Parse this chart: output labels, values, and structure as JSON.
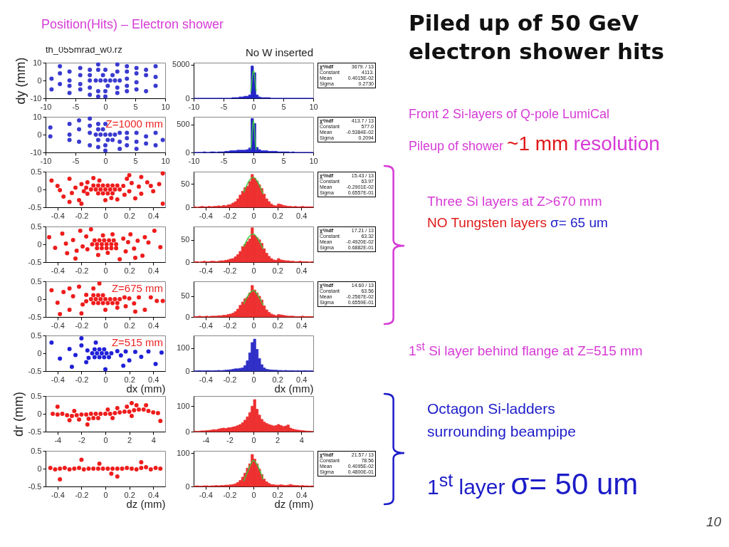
{
  "chart_data": [
    {
      "type": "scatter",
      "title": "th_055mrad_w0.rz",
      "ylabel": "dy (mm)",
      "color": "#3a3ad0",
      "x": [
        -1.6,
        -0.8,
        0,
        0.8,
        1.6,
        2.4,
        -0.4,
        0.4,
        1.2,
        -1.2,
        -1.2,
        -1.2,
        -1.2,
        0,
        0,
        0,
        2,
        2,
        2,
        2,
        3.6,
        3.6,
        3.6,
        3.6,
        3.6,
        5.2,
        5.2,
        5.2,
        5.2,
        6.8,
        6.8,
        6.8,
        8.4,
        8.4,
        8.4,
        -2.6,
        -2.6,
        -2.6,
        -2.6,
        -2.6,
        -4.2,
        -4.2,
        -4.2,
        -4.2,
        -6,
        -6,
        -6,
        -6,
        -7.6,
        -7.6,
        -7.6,
        -9,
        -9
      ],
      "values": [
        0,
        0,
        0,
        0,
        0,
        0,
        3,
        -3,
        3,
        6,
        -6,
        9,
        -9,
        6,
        -6,
        -9,
        5,
        -4,
        -7,
        9,
        5,
        -3,
        8,
        -6,
        1,
        4,
        -5,
        7,
        -1,
        3,
        -6,
        6,
        2,
        -3,
        8,
        6,
        -4,
        0,
        -8,
        3,
        3,
        -5,
        7,
        -2,
        0,
        -3,
        5,
        -7,
        4,
        -2,
        8,
        1,
        -5
      ],
      "xlim": [
        -10,
        10
      ],
      "ylim": [
        -10,
        10
      ],
      "xticks": [
        -10,
        -5,
        0,
        5,
        10
      ],
      "yticks": [
        -10,
        0,
        10
      ]
    },
    {
      "type": "histogram",
      "title": "No W inserted",
      "bins": [
        -10,
        -9.6,
        -9.2,
        -8.8,
        -8.4,
        -8,
        -7.6,
        -7.2,
        -6.8,
        -6.4,
        -6,
        -5.6,
        -5.2,
        -4.8,
        -4.4,
        -4,
        -3.6,
        -3.2,
        -2.8,
        -2.4,
        -2,
        -1.6,
        -1.2,
        -0.8,
        -0.4,
        0,
        0.4,
        0.8,
        1.2,
        1.6,
        2,
        2.4,
        2.8,
        3.2,
        3.6,
        4,
        4.4,
        4.8,
        5.2,
        5.6,
        6,
        6.4,
        6.8,
        7.2,
        7.6,
        8,
        8.4,
        8.8,
        9.2,
        9.6,
        10
      ],
      "series": [
        {
          "color": "#2424c8",
          "values": [
            0,
            0,
            0,
            0,
            0,
            0,
            0,
            0,
            0,
            0,
            0,
            0,
            0,
            0,
            0,
            0,
            100,
            100,
            100,
            200,
            200,
            300,
            300,
            500,
            4800,
            3800,
            500,
            200,
            100,
            100,
            100,
            100,
            0,
            0,
            0,
            0,
            0,
            0,
            0,
            0,
            0,
            0,
            0,
            0,
            0,
            0,
            0,
            0,
            0,
            0
          ]
        },
        {
          "type": "line",
          "color": "#3cc83c",
          "x": [
            -0.45,
            -0.3,
            -0.15,
            0,
            0.15,
            0.3,
            0.45
          ],
          "values": [
            1000,
            2200,
            3500,
            4100,
            3600,
            2300,
            1100
          ]
        }
      ],
      "xlim": [
        -10,
        10
      ],
      "ylim": [
        0,
        5300
      ],
      "xticks": [
        -10,
        -5,
        0,
        5,
        10
      ],
      "yticks": [
        0,
        5000
      ],
      "annotations": [
        "χ²/ndf",
        "3679. / 13",
        "Constant",
        "4113.",
        "Mean",
        "0.4015E-02",
        "Sigma",
        "0.2730"
      ]
    },
    {
      "type": "scatter",
      "color": "#3a3ad0",
      "x": [
        -1.6,
        -0.8,
        0,
        0.8,
        1.6,
        -0.4,
        0.4,
        1.2,
        -9.2,
        -9.2,
        -6,
        -6,
        -6,
        -4.4,
        -4.4,
        -4.4,
        -2.6,
        -2.6,
        -2.6,
        -2.6,
        -1.2,
        -1.2,
        -1.2,
        -1.2,
        0,
        0,
        0,
        2.4,
        2.4,
        2.4,
        3.6,
        3.6,
        3.6,
        5.2,
        5.2,
        5.2,
        6.8,
        6.8,
        8.4,
        8.4,
        9.6
      ],
      "values": [
        0,
        0,
        0,
        0,
        0,
        3,
        -3,
        -3,
        -1,
        4,
        0,
        -3,
        6,
        3,
        -4,
        8,
        5,
        -6,
        1,
        9,
        3,
        -3,
        6,
        -7,
        -6,
        -9,
        6,
        -4,
        1,
        -8,
        -2,
        1,
        -6,
        -4,
        1,
        -8,
        -1,
        -5,
        1,
        -6,
        -3
      ],
      "xlim": [
        -10,
        10
      ],
      "ylim": [
        -10,
        10
      ],
      "xticks": [
        -10,
        -5,
        0,
        5,
        10
      ],
      "yticks": [
        -10,
        0,
        10
      ],
      "annotations": [
        "Z=1000 mm"
      ]
    },
    {
      "type": "histogram",
      "bins": [
        -10,
        -9.6,
        -9.2,
        -8.8,
        -8.4,
        -8,
        -7.6,
        -7.2,
        -6.8,
        -6.4,
        -6,
        -5.6,
        -5.2,
        -4.8,
        -4.4,
        -4,
        -3.6,
        -3.2,
        -2.8,
        -2.4,
        -2,
        -1.6,
        -1.2,
        -0.8,
        -0.4,
        0,
        0.4,
        0.8,
        1.2,
        1.6,
        2,
        2.4,
        2.8,
        3.2,
        3.6,
        4,
        4.4,
        4.8,
        5.2,
        5.6,
        6,
        6.4,
        6.8,
        7.2,
        7.6,
        8,
        8.4,
        8.8,
        9.2,
        9.6,
        10
      ],
      "series": [
        {
          "color": "#2424c8",
          "values": [
            0,
            0,
            0,
            0,
            10,
            0,
            0,
            10,
            10,
            0,
            10,
            10,
            10,
            20,
            20,
            30,
            30,
            30,
            40,
            40,
            40,
            40,
            50,
            80,
            610,
            520,
            90,
            50,
            30,
            30,
            30,
            20,
            20,
            20,
            20,
            10,
            10,
            10,
            10,
            10,
            0,
            10,
            0,
            0,
            0,
            0,
            0,
            0,
            0,
            0
          ]
        },
        {
          "type": "line",
          "color": "#3cc83c",
          "x": [
            -0.45,
            -0.3,
            -0.15,
            0,
            0.15,
            0.3,
            0.45
          ],
          "values": [
            60,
            210,
            450,
            580,
            440,
            200,
            50
          ]
        }
      ],
      "xlim": [
        -10,
        10
      ],
      "ylim": [
        0,
        640
      ],
      "xticks": [
        -10,
        -5,
        0,
        5,
        10
      ],
      "yticks": [
        0,
        500
      ],
      "annotations": [
        "χ²/ndf",
        "413.7 / 13",
        "Constant",
        "577.0",
        "Mean",
        "-0.5384E-02",
        "Sigma",
        "0.2094"
      ]
    },
    {
      "type": "scatter",
      "color": "#ee1c1c",
      "x": [
        -0.12,
        -0.08,
        -0.04,
        0,
        0.04,
        0.08,
        0.12,
        -0.1,
        -0.06,
        -0.02,
        0.02,
        0.06,
        0.1,
        -0.06,
        -0.02,
        0.02,
        0.06,
        -0.45,
        -0.4,
        -0.35,
        -0.3,
        -0.28,
        -0.25,
        -0.22,
        -0.2,
        -0.18,
        -0.15,
        -0.15,
        -0.16,
        0.15,
        0.16,
        0.18,
        0.2,
        0.22,
        0.25,
        0.28,
        0.3,
        0.35,
        0.4,
        0.45,
        0.48,
        -0.05,
        0.05,
        0,
        -0.3,
        0.3,
        -0.2,
        0.2,
        -0.1,
        0.1,
        -0.38,
        0.38,
        0.48
      ],
      "values": [
        0,
        0,
        0,
        0,
        0,
        0,
        0,
        0.11,
        0.11,
        0.11,
        0.11,
        0.11,
        0.11,
        -0.11,
        -0.11,
        -0.11,
        -0.11,
        0.25,
        0.1,
        -0.2,
        0.3,
        -0.1,
        0.05,
        -0.3,
        0.15,
        -0.05,
        0.2,
        -0.12,
        0.05,
        0.1,
        -0.15,
        0.3,
        -0.05,
        0.18,
        -0.25,
        0.08,
        -0.12,
        0.2,
        -0.05,
        0.15,
        -0.4,
        0.25,
        -0.24,
        -0.3,
        -0.35,
        0.35,
        -0.4,
        0.4,
        0.32,
        -0.28,
        -0.02,
        0.1,
        0.45
      ],
      "xlim": [
        -0.5,
        0.5
      ],
      "ylim": [
        -0.5,
        0.5
      ],
      "xticks": [
        -0.4,
        -0.2,
        0,
        0.2,
        0.4
      ],
      "yticks": [
        -0.5,
        0,
        0.5
      ]
    },
    {
      "type": "histogram",
      "bins": [
        -0.5,
        -0.48,
        -0.46,
        -0.44,
        -0.42,
        -0.4,
        -0.38,
        -0.36,
        -0.34,
        -0.32,
        -0.3,
        -0.28,
        -0.26,
        -0.24,
        -0.22,
        -0.2,
        -0.18,
        -0.16,
        -0.14,
        -0.12,
        -0.1,
        -0.08,
        -0.06,
        -0.04,
        -0.02,
        0,
        0.02,
        0.04,
        0.06,
        0.08,
        0.1,
        0.12,
        0.14,
        0.16,
        0.18,
        0.2,
        0.22,
        0.24,
        0.26,
        0.28,
        0.3,
        0.32,
        0.34,
        0.36,
        0.38,
        0.4,
        0.42,
        0.44,
        0.46,
        0.48,
        0.5
      ],
      "series": [
        {
          "color": "#ee3030",
          "values": [
            1,
            0,
            1,
            2,
            1,
            1,
            2,
            1,
            2,
            2,
            3,
            2,
            4,
            3,
            5,
            6,
            9,
            12,
            18,
            26,
            34,
            42,
            45,
            55,
            70,
            62,
            56,
            48,
            40,
            28,
            18,
            12,
            7,
            4,
            3,
            7,
            6,
            4,
            3,
            2,
            2,
            1,
            2,
            1,
            1,
            2,
            1,
            1,
            1,
            1
          ]
        },
        {
          "type": "line",
          "color": "#3cc83c",
          "x": [
            -0.08,
            -0.04,
            0,
            0.04,
            0.08
          ],
          "values": [
            32,
            55,
            64,
            52,
            29
          ]
        }
      ],
      "xlim": [
        -0.5,
        0.5
      ],
      "ylim": [
        0,
        76
      ],
      "xticks": [
        -0.4,
        -0.2,
        0,
        0.2,
        0.4
      ],
      "yticks": [
        0,
        50
      ],
      "annotations": [
        "χ²/ndf",
        "15.43 / 13",
        "Constant",
        "63.97",
        "Mean",
        "-0.2901E-02",
        "Sigma",
        "0.6557E-01"
      ]
    },
    {
      "type": "scatter",
      "color": "#ee1c1c",
      "x": [
        -0.11,
        -0.07,
        -0.03,
        0.01,
        0.05,
        0.09,
        -0.09,
        -0.05,
        -0.01,
        0.03,
        0.07,
        -0.07,
        -0.03,
        0.01,
        0.05,
        0.09,
        -0.47,
        -0.42,
        -0.36,
        -0.32,
        -0.27,
        -0.24,
        -0.21,
        -0.19,
        -0.16,
        -0.15,
        0.15,
        0.17,
        0.19,
        0.21,
        0.24,
        0.27,
        0.31,
        0.36,
        0.41,
        0.46,
        -0.06,
        0.06,
        -0.25,
        0.25,
        -0.33,
        0.33,
        -0.12,
        0.12,
        0.02,
        -0.02
      ],
      "values": [
        0,
        0,
        0,
        0,
        0,
        0,
        0.11,
        0.11,
        0.11,
        0.11,
        0.11,
        -0.11,
        -0.11,
        -0.11,
        -0.11,
        -0.11,
        0.2,
        -0.1,
        0.3,
        -0.25,
        0.12,
        -0.18,
        0.38,
        -0.06,
        0.22,
        -0.14,
        0.16,
        -0.2,
        0.06,
        0.28,
        -0.12,
        0.1,
        -0.32,
        0.05,
        0.38,
        -0.08,
        -0.3,
        0.28,
        -0.4,
        -0.38,
        0.02,
        0.2,
        0.42,
        -0.42,
        -0.24,
        0.25
      ],
      "xlim": [
        -0.5,
        0.5
      ],
      "ylim": [
        -0.5,
        0.5
      ],
      "xticks": [
        -0.4,
        -0.2,
        0,
        0.2,
        0.4
      ],
      "yticks": [
        -0.5,
        0,
        0.5
      ]
    },
    {
      "type": "histogram",
      "bins": [
        -0.5,
        -0.48,
        -0.46,
        -0.44,
        -0.42,
        -0.4,
        -0.38,
        -0.36,
        -0.34,
        -0.32,
        -0.3,
        -0.28,
        -0.26,
        -0.24,
        -0.22,
        -0.2,
        -0.18,
        -0.16,
        -0.14,
        -0.12,
        -0.1,
        -0.08,
        -0.06,
        -0.04,
        -0.02,
        0,
        0.02,
        0.04,
        0.06,
        0.08,
        0.1,
        0.12,
        0.14,
        0.16,
        0.18,
        0.2,
        0.22,
        0.24,
        0.26,
        0.28,
        0.3,
        0.32,
        0.34,
        0.36,
        0.38,
        0.4,
        0.42,
        0.44,
        0.46,
        0.48,
        0.5
      ],
      "series": [
        {
          "color": "#ee3030",
          "values": [
            1,
            1,
            0,
            1,
            2,
            1,
            1,
            2,
            2,
            1,
            2,
            3,
            3,
            4,
            5,
            7,
            8,
            12,
            17,
            24,
            35,
            40,
            46,
            52,
            77,
            60,
            55,
            50,
            42,
            30,
            20,
            13,
            8,
            5,
            4,
            8,
            5,
            4,
            3,
            3,
            2,
            2,
            1,
            1,
            2,
            1,
            1,
            1,
            0,
            1
          ]
        },
        {
          "type": "line",
          "color": "#3cc83c",
          "x": [
            -0.08,
            -0.04,
            0,
            0.04,
            0.08
          ],
          "values": [
            35,
            56,
            63,
            51,
            30
          ]
        }
      ],
      "xlim": [
        -0.5,
        0.5
      ],
      "ylim": [
        0,
        80
      ],
      "xticks": [
        -0.4,
        -0.2,
        0,
        0.2,
        0.4
      ],
      "yticks": [
        0,
        50
      ],
      "annotations": [
        "χ²/ndf",
        "17.21 / 13",
        "Constant",
        "63.32",
        "Mean",
        "-0.4920E-02",
        "Sigma",
        "0.6882E-01"
      ]
    },
    {
      "type": "scatter",
      "color": "#ee1c1c",
      "x": [
        -0.12,
        -0.08,
        -0.04,
        0,
        0.04,
        0.08,
        0.12,
        -0.1,
        -0.06,
        -0.02,
        -0.1,
        -0.06,
        -0.02,
        0.02,
        0.06,
        0.1,
        -0.45,
        -0.4,
        -0.35,
        -0.3,
        -0.27,
        -0.22,
        -0.19,
        -0.16,
        -0.16,
        -0.2,
        -0.3,
        -0.1,
        0.16,
        0.17,
        0.2,
        0.24,
        0.28,
        0.33,
        0.38,
        0.43,
        0.48,
        0,
        -0.05,
        0.25,
        0.1,
        -0.38
      ],
      "values": [
        0,
        0,
        0,
        0,
        0,
        0,
        0,
        0.11,
        0.11,
        0.11,
        -0.11,
        -0.11,
        -0.11,
        -0.11,
        -0.11,
        -0.11,
        0.25,
        -0.1,
        0.2,
        -0.3,
        0.08,
        0.35,
        -0.15,
        0.12,
        -0.06,
        -0.4,
        0.3,
        0.3,
        0.05,
        -0.2,
        0.02,
        -0.12,
        0.05,
        -0.3,
        0.05,
        -0.05,
        -0.05,
        -0.3,
        0.44,
        -0.35,
        -0.24,
        -0.42
      ],
      "xlim": [
        -0.5,
        0.5
      ],
      "ylim": [
        -0.5,
        0.5
      ],
      "xticks": [
        -0.4,
        -0.2,
        0,
        0.2,
        0.4
      ],
      "yticks": [
        -0.5,
        0,
        0.5
      ],
      "annotations": [
        "Z=675 mm"
      ]
    },
    {
      "type": "histogram",
      "bins": [
        -0.5,
        -0.48,
        -0.46,
        -0.44,
        -0.42,
        -0.4,
        -0.38,
        -0.36,
        -0.34,
        -0.32,
        -0.3,
        -0.28,
        -0.26,
        -0.24,
        -0.22,
        -0.2,
        -0.18,
        -0.16,
        -0.14,
        -0.12,
        -0.1,
        -0.08,
        -0.06,
        -0.04,
        -0.02,
        0,
        0.02,
        0.04,
        0.06,
        0.08,
        0.1,
        0.12,
        0.14,
        0.16,
        0.18,
        0.2,
        0.22,
        0.24,
        0.26,
        0.28,
        0.3,
        0.32,
        0.34,
        0.36,
        0.38,
        0.4,
        0.42,
        0.44,
        0.46,
        0.48,
        0.5
      ],
      "series": [
        {
          "color": "#ee3030",
          "values": [
            1,
            1,
            2,
            1,
            1,
            2,
            1,
            2,
            2,
            2,
            3,
            3,
            4,
            4,
            6,
            7,
            9,
            13,
            19,
            28,
            36,
            44,
            48,
            58,
            76,
            65,
            58,
            50,
            41,
            27,
            17,
            11,
            7,
            5,
            3,
            6,
            5,
            4,
            3,
            2,
            2,
            2,
            1,
            1,
            1,
            2,
            1,
            1,
            1,
            1
          ]
        },
        {
          "type": "line",
          "color": "#3cc83c",
          "x": [
            -0.08,
            -0.04,
            0,
            0.04,
            0.08
          ],
          "values": [
            32,
            54,
            64,
            51,
            29
          ]
        }
      ],
      "xlim": [
        -0.5,
        0.5
      ],
      "ylim": [
        0,
        86
      ],
      "xticks": [
        -0.4,
        -0.2,
        0,
        0.2,
        0.4
      ],
      "yticks": [
        0,
        50
      ],
      "annotations": [
        "χ²/ndf",
        "14.60 / 13",
        "Constant",
        "63.56",
        "Mean",
        "-0.2567E-02",
        "Sigma",
        "0.6559E-01"
      ]
    },
    {
      "type": "scatter",
      "xlabel": "dx (mm)",
      "color": "#2020d8",
      "x": [
        -0.11,
        -0.07,
        -0.03,
        0.01,
        0.05,
        -0.09,
        -0.05,
        -0.01,
        -0.09,
        -0.05,
        -0.01,
        0.03,
        -0.45,
        -0.38,
        -0.3,
        -0.25,
        -0.2,
        -0.16,
        -0.15,
        -0.14,
        -0.08,
        0.1,
        0.13,
        0.17,
        0.2,
        0.25,
        0.3,
        0.36,
        0.42,
        0.47,
        -0.28,
        0.15,
        0,
        -0.2
      ],
      "values": [
        0,
        0,
        0,
        0,
        0,
        0.11,
        0.11,
        0.11,
        -0.11,
        -0.11,
        -0.11,
        -0.11,
        0.3,
        -0.15,
        0.12,
        -0.05,
        0.22,
        -0.25,
        0.08,
        -0.13,
        0.3,
        0.06,
        -0.06,
        0.05,
        -0.2,
        0.04,
        -0.1,
        0.05,
        -0.3,
        0.02,
        -0.38,
        -0.35,
        -0.45,
        0.42
      ],
      "xlim": [
        -0.5,
        0.5
      ],
      "ylim": [
        -0.5,
        0.5
      ],
      "xticks": [
        -0.4,
        -0.2,
        0,
        0.2,
        0.4
      ],
      "yticks": [
        -0.5,
        0,
        0.5
      ],
      "annotations": [
        "Z=515 mm"
      ]
    },
    {
      "type": "histogram",
      "xlabel": "dx (mm)",
      "bins": [
        -0.5,
        -0.48,
        -0.46,
        -0.44,
        -0.42,
        -0.4,
        -0.38,
        -0.36,
        -0.34,
        -0.32,
        -0.3,
        -0.28,
        -0.26,
        -0.24,
        -0.22,
        -0.2,
        -0.18,
        -0.16,
        -0.14,
        -0.12,
        -0.1,
        -0.08,
        -0.06,
        -0.04,
        -0.02,
        0,
        0.02,
        0.04,
        0.06,
        0.08,
        0.1,
        0.12,
        0.14,
        0.16,
        0.18,
        0.2,
        0.22,
        0.24,
        0.26,
        0.28,
        0.3,
        0.32,
        0.34,
        0.36,
        0.38,
        0.4,
        0.42,
        0.44,
        0.46,
        0.48,
        0.5
      ],
      "color": "#3030c8",
      "values": [
        1,
        1,
        2,
        1,
        1,
        2,
        2,
        1,
        2,
        2,
        3,
        2,
        3,
        4,
        5,
        6,
        8,
        10,
        10,
        12,
        14,
        24,
        45,
        80,
        125,
        140,
        95,
        55,
        28,
        14,
        8,
        6,
        5,
        4,
        4,
        3,
        3,
        2,
        3,
        2,
        2,
        2,
        1,
        2,
        1,
        1,
        2,
        1,
        1,
        1
      ],
      "xlim": [
        -0.5,
        0.5
      ],
      "ylim": [
        0,
        156
      ],
      "xticks": [
        -0.4,
        -0.2,
        0,
        0.2,
        0.4
      ],
      "yticks": [
        0,
        100
      ]
    },
    {
      "type": "scatter",
      "ylabel": "dr (mm)",
      "color": "#ee1c1c",
      "x": [
        -4.4,
        -4,
        -3.6,
        -3.2,
        -2.8,
        -2.4,
        -2,
        -1.6,
        -1.2,
        -0.8,
        -0.4,
        0,
        0.4,
        0.8,
        1.2,
        1.6,
        2,
        2.4,
        2.8,
        3.2,
        3.6,
        4,
        4.4,
        -3,
        -2.2,
        -1.4,
        -0.6,
        0.2,
        1,
        1.8,
        2.6,
        3.4,
        -2.6,
        -1,
        0.6,
        2.2,
        -4,
        4.6,
        -1.5,
        2.2
      ],
      "values": [
        0,
        -0.02,
        0,
        -0.04,
        -0.06,
        -0.04,
        -0.02,
        -0.02,
        0,
        0,
        0,
        0,
        0,
        0.02,
        0.04,
        0.06,
        0.06,
        0.1,
        0.12,
        0.12,
        0.08,
        0.04,
        0.02,
        -0.18,
        -0.16,
        -0.14,
        -0.12,
        0.12,
        0.16,
        0.2,
        0.24,
        0.24,
        0.08,
        -0.12,
        -0.12,
        -0.06,
        0.2,
        -0.2,
        -0.3,
        0.3
      ],
      "xlim": [
        -5,
        5
      ],
      "ylim": [
        -0.5,
        0.5
      ],
      "xticks": [
        -4,
        -2,
        0,
        2,
        4
      ],
      "yticks": [
        -0.5,
        0,
        0.5
      ]
    },
    {
      "type": "histogram",
      "bins": [
        -5,
        -4.8,
        -4.6,
        -4.4,
        -4.2,
        -4,
        -3.8,
        -3.6,
        -3.4,
        -3.2,
        -3,
        -2.8,
        -2.6,
        -2.4,
        -2.2,
        -2,
        -1.8,
        -1.6,
        -1.4,
        -1.2,
        -1,
        -0.8,
        -0.6,
        -0.4,
        -0.2,
        0,
        0.2,
        0.4,
        0.6,
        0.8,
        1,
        1.2,
        1.4,
        1.6,
        1.8,
        2,
        2.2,
        2.4,
        2.6,
        2.8,
        3,
        3.2,
        3.4,
        3.6,
        3.8,
        4,
        4.2,
        4.4,
        4.6,
        4.8,
        5
      ],
      "color": "#ee3030",
      "values": [
        2,
        1,
        2,
        3,
        3,
        4,
        5,
        6,
        8,
        7,
        10,
        12,
        14,
        12,
        15,
        16,
        18,
        20,
        24,
        28,
        35,
        45,
        58,
        75,
        100,
        126,
        88,
        65,
        48,
        38,
        32,
        28,
        25,
        22,
        24,
        28,
        24,
        20,
        22,
        26,
        14,
        10,
        8,
        6,
        5,
        4,
        3,
        2,
        2,
        1
      ],
      "xlim": [
        -5,
        5
      ],
      "ylim": [
        0,
        140
      ],
      "xticks": [
        -4,
        -2,
        0,
        2,
        4
      ],
      "yticks": [
        0,
        100
      ]
    },
    {
      "type": "scatter",
      "xlabel": "dz (mm)",
      "color": "#ee1c1c",
      "x": [
        -0.46,
        -0.42,
        -0.38,
        -0.34,
        -0.3,
        -0.26,
        -0.22,
        -0.18,
        -0.14,
        -0.1,
        -0.06,
        -0.02,
        0.02,
        0.06,
        0.1,
        0.14,
        0.18,
        0.22,
        0.26,
        0.3,
        0.34,
        0.38,
        0.42,
        0.46,
        -0.38,
        -0.05,
        0.05,
        0.3,
        -0.2,
        0.1
      ],
      "values": [
        0.02,
        -0.02,
        0,
        0.02,
        -0.02,
        0,
        0.02,
        -0.02,
        0,
        0,
        0,
        0,
        0,
        0,
        0,
        0,
        0.02,
        0,
        -0.02,
        0.02,
        0.04,
        -0.02,
        0.02,
        0,
        -0.3,
        0.14,
        -0.14,
        0.18,
        0.25,
        -0.22
      ],
      "xlim": [
        -0.5,
        0.5
      ],
      "ylim": [
        -0.5,
        0.5
      ],
      "xticks": [
        -0.4,
        -0.2,
        0,
        0.2,
        0.4
      ],
      "yticks": [
        -0.5,
        0,
        0.5
      ]
    },
    {
      "type": "histogram",
      "xlabel": "dz (mm)",
      "bins": [
        -0.5,
        -0.48,
        -0.46,
        -0.44,
        -0.42,
        -0.4,
        -0.38,
        -0.36,
        -0.34,
        -0.32,
        -0.3,
        -0.28,
        -0.26,
        -0.24,
        -0.22,
        -0.2,
        -0.18,
        -0.16,
        -0.14,
        -0.12,
        -0.1,
        -0.08,
        -0.06,
        -0.04,
        -0.02,
        0,
        0.02,
        0.04,
        0.06,
        0.08,
        0.1,
        0.12,
        0.14,
        0.16,
        0.18,
        0.2,
        0.22,
        0.24,
        0.26,
        0.28,
        0.3,
        0.32,
        0.34,
        0.36,
        0.38,
        0.4,
        0.42,
        0.44,
        0.46,
        0.48,
        0.5
      ],
      "series": [
        {
          "color": "#ee3030",
          "values": [
            1,
            2,
            1,
            1,
            2,
            2,
            1,
            2,
            2,
            3,
            2,
            3,
            3,
            4,
            4,
            5,
            6,
            8,
            12,
            18,
            28,
            40,
            55,
            68,
            96,
            82,
            68,
            52,
            36,
            22,
            14,
            9,
            6,
            5,
            4,
            4,
            5,
            4,
            3,
            4,
            6,
            4,
            3,
            3,
            2,
            3,
            2,
            2,
            1,
            2
          ]
        },
        {
          "type": "line",
          "color": "#3cc83c",
          "x": [
            -0.08,
            -0.04,
            0,
            0.04,
            0.08
          ],
          "values": [
            17,
            52,
            78,
            59,
            22
          ]
        }
      ],
      "xlim": [
        -0.5,
        0.5
      ],
      "ylim": [
        0,
        107
      ],
      "xticks": [
        -0.4,
        -0.2,
        0,
        0.2,
        0.4
      ],
      "yticks": [
        0,
        100
      ],
      "annotations": [
        "χ²/ndf",
        "21.57 / 13",
        "Constant",
        "78.56",
        "Mean",
        "0.4095E-02",
        "Sigma",
        "0.4800E-01"
      ]
    },
    {
      "type": "other",
      "title": "Piled up of 50 GeV electron shower hits",
      "annotations": [
        "Position(Hits) – Electron shower",
        "Front 2 Si-layers of Q-pole LumiCal",
        "Pileup of shower",
        "~1 mm",
        "resolution",
        "Three Si layers at Z>670 mm",
        "NO Tungsten layers",
        "σ= 65 um",
        "1$^{st}$ Si layer behind flange at Z=515 mm",
        "Octagon Si-ladders",
        "surrounding beampipe",
        "1$^{st}$ layer",
        "σ= 50 um",
        "10"
      ]
    }
  ]
}
